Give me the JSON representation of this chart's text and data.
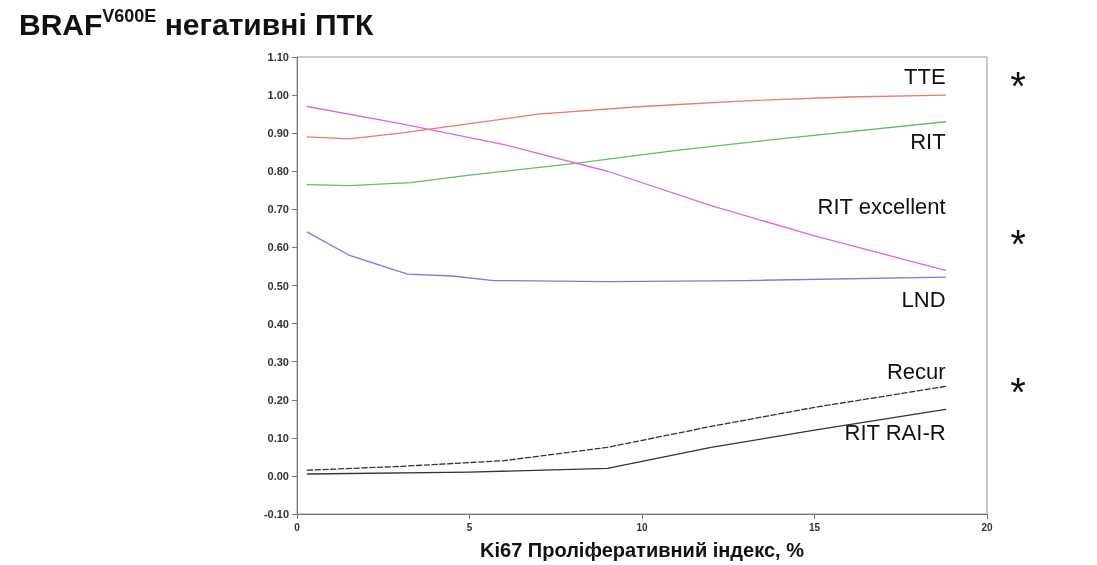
{
  "chart_data": {
    "type": "line",
    "title": "BRAF$^{V600E}$ негативні ПТК",
    "xlabel": "Ki67 Проліферативний індекс, %",
    "xlim": [
      0,
      20
    ],
    "xticks": [
      0,
      5,
      10,
      15,
      20
    ],
    "ylim": [
      -0.1,
      1.1
    ],
    "yticks": [
      {
        "value": -0.1,
        "label": "-0.10"
      },
      {
        "value": 0,
        "label": "0.00"
      },
      {
        "value": 0.1,
        "label": "0.10"
      },
      {
        "value": 0.2,
        "label": "0.20"
      },
      {
        "value": 0.3,
        "label": "0.30"
      },
      {
        "value": 0.4,
        "label": "0.40"
      },
      {
        "value": 0.5,
        "label": "0.50"
      },
      {
        "value": 0.6,
        "label": "0.60"
      },
      {
        "value": 0.7,
        "label": "0.70"
      },
      {
        "value": 0.8,
        "label": "0.80"
      },
      {
        "value": 0.9,
        "label": "0.90"
      },
      {
        "value": 1.0,
        "label": "1.00"
      },
      {
        "value": 1.1,
        "label": "1.10"
      }
    ],
    "grid": false,
    "legend": false,
    "marker": "none",
    "series": [
      {
        "name": "TTE",
        "color": "#ee7777",
        "x": [
          0.3,
          1.5,
          3,
          5,
          7,
          10,
          13,
          16,
          18.8
        ],
        "values": [
          0.89,
          0.885,
          0.9,
          0.925,
          0.95,
          0.97,
          0.985,
          0.995,
          1.0
        ]
      },
      {
        "name": "RIT",
        "color": "#66bb66",
        "x": [
          0.3,
          1.5,
          3.3,
          5,
          8,
          11,
          14,
          18.8
        ],
        "values": [
          0.765,
          0.762,
          0.77,
          0.79,
          0.82,
          0.855,
          0.885,
          0.93
        ]
      },
      {
        "name": "RIT excellent",
        "color": "#dd66dd",
        "x": [
          0.3,
          3,
          6,
          9,
          12,
          15,
          18.8
        ],
        "values": [
          0.97,
          0.925,
          0.87,
          0.8,
          0.71,
          0.63,
          0.54
        ]
      },
      {
        "name": "LND",
        "color": "#7777ee",
        "x": [
          0.3,
          1.5,
          3.2,
          4.5,
          5.7,
          9,
          13,
          18.8
        ],
        "values": [
          0.64,
          0.58,
          0.53,
          0.525,
          0.513,
          0.51,
          0.513,
          0.522
        ]
      },
      {
        "name": "Recur",
        "color": "#333333",
        "line_style": "dashed",
        "x": [
          0.3,
          3,
          6,
          9,
          12,
          15,
          18.8
        ],
        "values": [
          0.015,
          0.025,
          0.04,
          0.075,
          0.13,
          0.18,
          0.235
        ]
      },
      {
        "name": "RIT RAI-R",
        "color": "#333333",
        "line_style": "solid",
        "x": [
          0.3,
          5,
          9,
          12,
          15,
          18.8
        ],
        "values": [
          0.005,
          0.01,
          0.02,
          0.075,
          0.12,
          0.175
        ]
      }
    ],
    "annotations": [
      "*",
      "*",
      "*"
    ]
  }
}
